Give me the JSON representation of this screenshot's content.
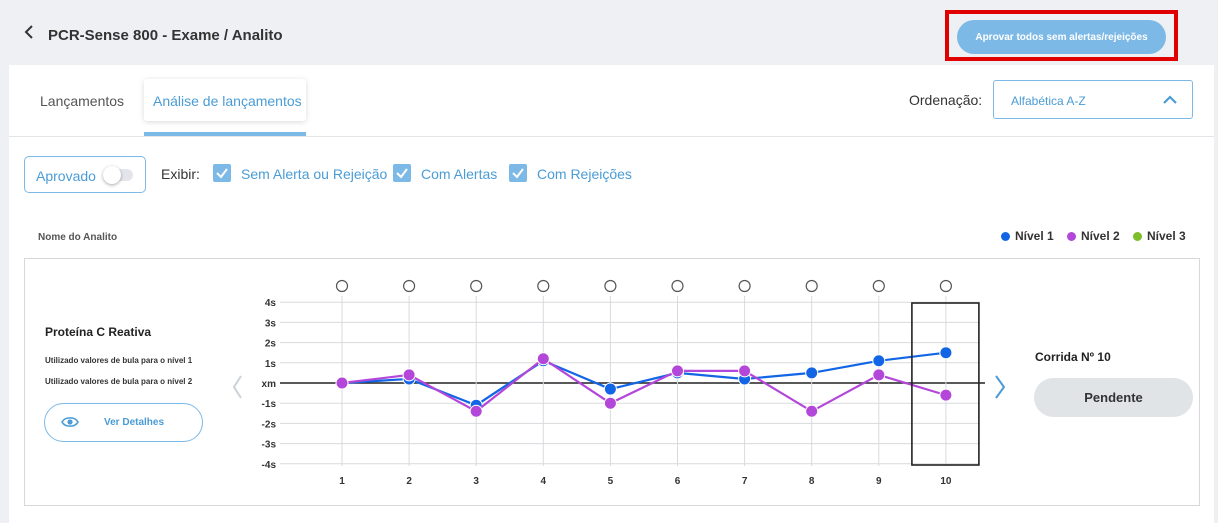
{
  "header": {
    "title": "PCR-Sense 800 - Exame / Analito",
    "approve_all_label": "Aprovar todos sem alertas/rejeições"
  },
  "tabs": [
    {
      "label": "Lançamentos",
      "active": false
    },
    {
      "label": "Análise de lançamentos",
      "active": true
    }
  ],
  "sort": {
    "label": "Ordenação:",
    "value": "Alfabética A-Z"
  },
  "filters": {
    "approved_label": "Aprovado",
    "approved_on": false,
    "show_label": "Exibir:",
    "options": [
      {
        "label": "Sem Alerta ou Rejeição",
        "checked": true
      },
      {
        "label": "Com Alertas",
        "checked": true
      },
      {
        "label": "Com Rejeições",
        "checked": true
      }
    ]
  },
  "table": {
    "column_header": "Nome do Analito",
    "legend": [
      {
        "label": "Nível 1",
        "color": "#1266e6"
      },
      {
        "label": "Nível 2",
        "color": "#b347d9"
      },
      {
        "label": "Nível 3",
        "color": "#7cbf2a"
      }
    ]
  },
  "analyte": {
    "name": "Proteína C Reativa",
    "notes": [
      "Utilizado valores de bula para o nível 1",
      "Utilizado valores de bula para o nível 2"
    ],
    "details_label": "Ver Detalhes"
  },
  "run": {
    "label": "Corrida Nº 10",
    "status_label": "Pendente"
  },
  "colors": {
    "accent": "#7db9e6",
    "highlight_border": "#e00000"
  },
  "chart_data": {
    "type": "line",
    "x": [
      1,
      2,
      3,
      4,
      5,
      6,
      7,
      8,
      9,
      10
    ],
    "y_tick_labels": [
      "4s",
      "3s",
      "2s",
      "1s",
      "xm",
      "-1s",
      "-2s",
      "-3s",
      "-4s"
    ],
    "ylim": [
      -4,
      4
    ],
    "selected_run": 10,
    "series": [
      {
        "name": "Nível 1",
        "color": "#1266e6",
        "values": [
          0,
          0.2,
          -1.1,
          1.1,
          -0.3,
          0.5,
          0.2,
          0.5,
          1.1,
          1.5
        ]
      },
      {
        "name": "Nível 2",
        "color": "#b347d9",
        "values": [
          0,
          0.4,
          -1.4,
          1.2,
          -1.0,
          0.6,
          0.6,
          -1.4,
          0.4,
          -0.6
        ]
      }
    ]
  }
}
